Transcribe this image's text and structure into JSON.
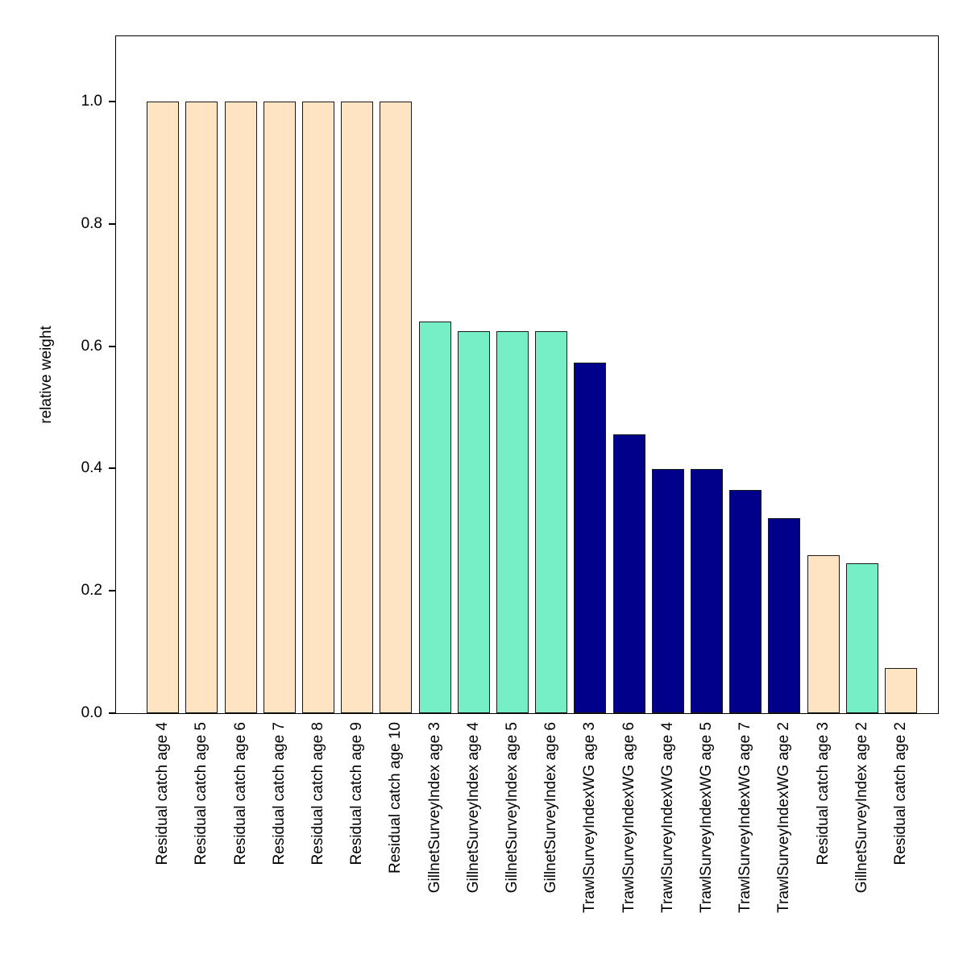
{
  "chart_data": {
    "type": "bar",
    "title": "",
    "xlabel": "",
    "ylabel": "relative weight",
    "ylim": [
      0,
      1.107
    ],
    "ytick_labels": [
      "0.0",
      "0.2",
      "0.4",
      "0.6",
      "0.8",
      "1.0"
    ],
    "grid": false,
    "legend": false,
    "categories": [
      "Residual catch age 4",
      "Residual catch age 5",
      "Residual catch age 6",
      "Residual catch age 7",
      "Residual catch age 8",
      "Residual catch age 9",
      "Residual catch age 10",
      "GillnetSurveyIndex age 3",
      "GillnetSurveyIndex age 4",
      "GillnetSurveyIndex age 5",
      "GillnetSurveyIndex age 6",
      "TrawlSurveyIndexWG age 3",
      "TrawlSurveyIndexWG age 6",
      "TrawlSurveyIndexWG age 4",
      "TrawlSurveyIndexWG age 5",
      "TrawlSurveyIndexWG age 7",
      "TrawlSurveyIndexWG age 2",
      "Residual catch age 3",
      "GillnetSurveyIndex age 2",
      "Residual catch age 2"
    ],
    "values": [
      1.0,
      1.0,
      1.0,
      1.0,
      1.0,
      1.0,
      1.0,
      0.64,
      0.625,
      0.625,
      0.625,
      0.573,
      0.456,
      0.399,
      0.399,
      0.365,
      0.319,
      0.258,
      0.245,
      0.074
    ],
    "colors": [
      "#FFE4C4",
      "#FFE4C4",
      "#FFE4C4",
      "#FFE4C4",
      "#FFE4C4",
      "#FFE4C4",
      "#FFE4C4",
      "#76EEC6",
      "#76EEC6",
      "#76EEC6",
      "#76EEC6",
      "#00008B",
      "#00008B",
      "#00008B",
      "#00008B",
      "#00008B",
      "#00008B",
      "#FFE4C4",
      "#76EEC6",
      "#FFE4C4"
    ],
    "palette": {
      "Residual catch": "#FFE4C4",
      "GillnetSurveyIndex": "#76EEC6",
      "TrawlSurveyIndexWG": "#00008B"
    }
  }
}
